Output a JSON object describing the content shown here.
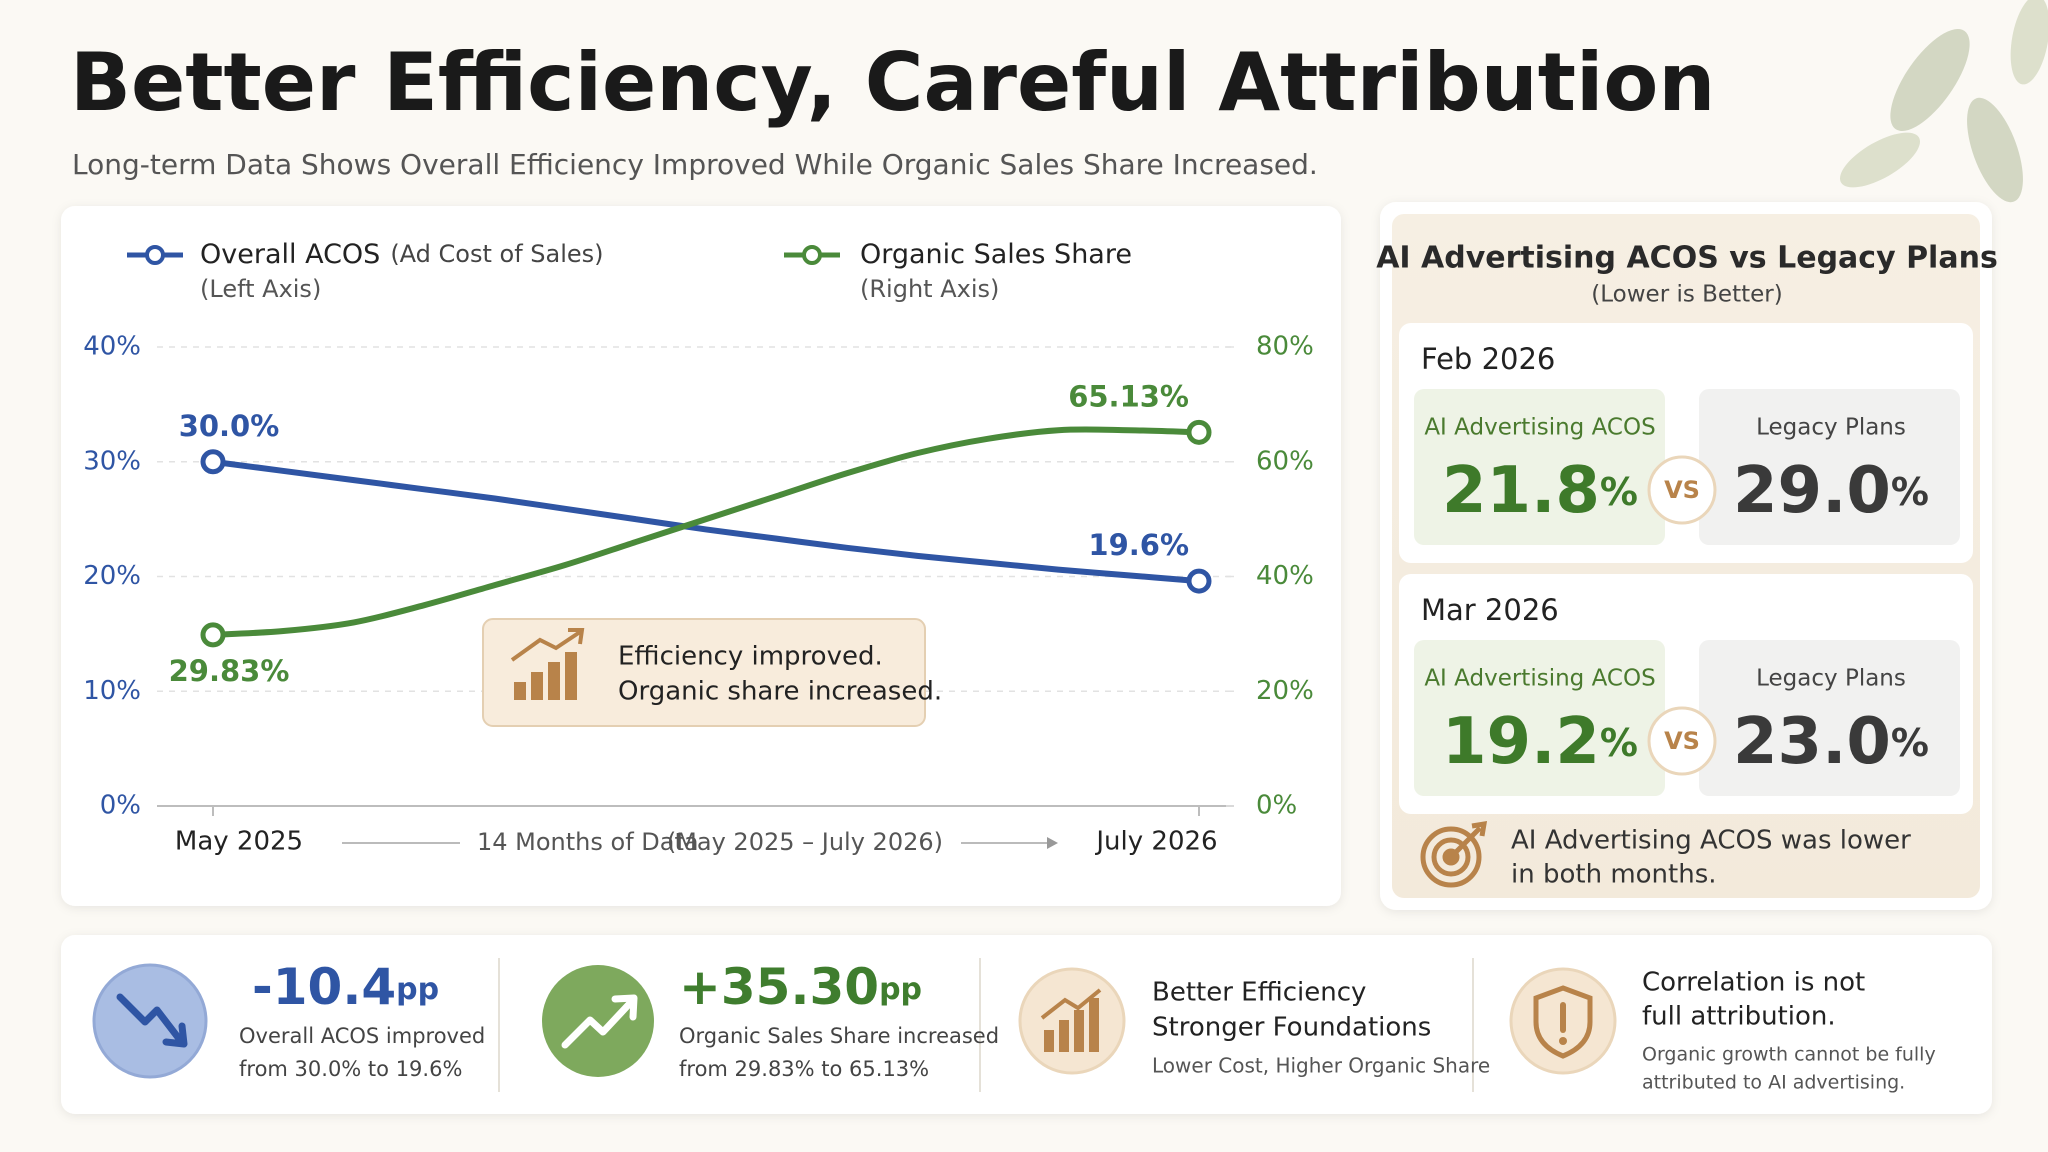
{
  "title": "Better Efficiency, Careful Attribution",
  "subtitle": "Long-term Data Shows Overall Efficiency Improved While Organic Sales Share Increased.",
  "chart_data": {
    "type": "line",
    "categories": [
      "May 2025",
      null,
      null,
      null,
      null,
      null,
      null,
      null,
      null,
      null,
      null,
      null,
      null,
      null,
      "July 2026"
    ],
    "series": [
      {
        "name": "Overall ACOS",
        "description": "(Ad Cost of Sales)",
        "axis_note": "(Left Axis)",
        "color": "#2f55a4",
        "values": [
          30.0,
          29.2,
          28.4,
          27.6,
          26.8,
          25.9,
          25.0,
          24.1,
          23.3,
          22.5,
          21.8,
          21.2,
          20.6,
          20.1,
          19.6
        ],
        "value_labels": [
          "30.0%",
          null,
          null,
          null,
          null,
          null,
          null,
          null,
          null,
          null,
          null,
          null,
          null,
          null,
          "19.6%"
        ]
      },
      {
        "name": "Organic Sales Share",
        "axis_note": "(Right Axis)",
        "color": "#4a8a3a",
        "axis": "y2",
        "values": [
          29.83,
          30.5,
          32,
          35,
          38.5,
          42,
          46,
          50,
          54,
          58,
          61.5,
          64,
          65.5,
          65.5,
          65.13
        ],
        "value_labels": [
          "29.83%",
          null,
          null,
          null,
          null,
          null,
          null,
          null,
          null,
          null,
          null,
          null,
          null,
          null,
          "65.13%"
        ]
      }
    ],
    "ylim": [
      0,
      40
    ],
    "yticks": [
      {
        "value": 0,
        "label": "0%"
      },
      {
        "value": 10,
        "label": "10%"
      },
      {
        "value": 20,
        "label": "20%"
      },
      {
        "value": 30,
        "label": "30%"
      },
      {
        "value": 40,
        "label": "40%"
      }
    ],
    "y2lim": [
      0,
      80
    ],
    "y2ticks": [
      {
        "value": 0,
        "label": "0%"
      },
      {
        "value": 20,
        "label": "20%"
      },
      {
        "value": 40,
        "label": "40%"
      },
      {
        "value": 60,
        "label": "60%"
      },
      {
        "value": 80,
        "label": "80%"
      }
    ],
    "grid": true,
    "x_note": "14 Months of Data",
    "x_note_range": "(May 2025 – July 2026)",
    "annotation": [
      "Efficiency improved.",
      "Organic share increased."
    ]
  },
  "comparison": {
    "title": "AI Advertising ACOS vs Legacy Plans",
    "subtitle": "(Lower is Better)",
    "unit": "%",
    "vs": "VS",
    "periods": [
      {
        "period": "Feb 2026",
        "ai_label": "AI Advertising ACOS",
        "ai_value": "21.8",
        "legacy_label": "Legacy Plans",
        "legacy_value": "29.0"
      },
      {
        "period": "Mar 2026",
        "ai_label": "AI Advertising ACOS",
        "ai_value": "19.2",
        "legacy_label": "Legacy Plans",
        "legacy_value": "23.0"
      }
    ],
    "footnote": [
      "AI Advertising ACOS was lower",
      "in both months."
    ]
  },
  "kpis": [
    {
      "value": "-10.4",
      "unit": "pp",
      "lines": [
        "Overall ACOS improved",
        "from 30.0% to 19.6%"
      ]
    },
    {
      "value": "+35.30",
      "unit": "pp",
      "lines": [
        "Organic Sales Share increased",
        "from 29.83% to 65.13%"
      ]
    },
    {
      "heading": [
        "Better Efficiency",
        "Stronger Foundations"
      ],
      "note": [
        "Lower Cost, Higher Organic Share"
      ]
    },
    {
      "heading": [
        "Correlation is not",
        "full attribution."
      ],
      "note": [
        "Organic growth cannot be fully",
        "attributed to AI advertising."
      ]
    }
  ]
}
